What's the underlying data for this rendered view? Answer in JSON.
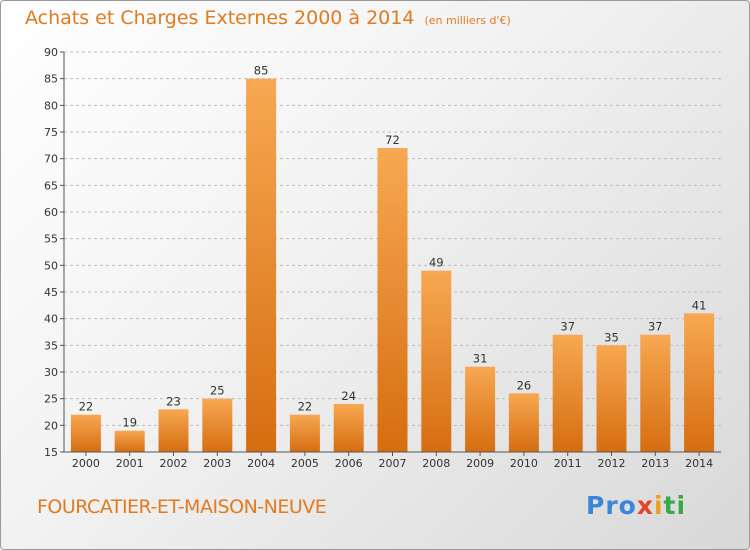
{
  "header": {
    "title": "Achats et Charges Externes 2000 à 2014",
    "subtitle": "(en milliers d'€)"
  },
  "footer": {
    "commune": "FOURCATIER-ET-MAISON-NEUVE",
    "logo": [
      "Pro",
      "x",
      "i",
      "ti"
    ]
  },
  "colors": {
    "bar_light": "#f7a852",
    "bar_dark": "#d66d10",
    "text_accent": "#e07b1f"
  },
  "chart_data": {
    "type": "bar",
    "title": "Achats et Charges Externes 2000 à 2014",
    "subtitle": "(en milliers d'€)",
    "categories": [
      "2000",
      "2001",
      "2002",
      "2003",
      "2004",
      "2005",
      "2006",
      "2007",
      "2008",
      "2009",
      "2010",
      "2011",
      "2012",
      "2013",
      "2014"
    ],
    "values": [
      22,
      19,
      23,
      25,
      85,
      22,
      24,
      72,
      49,
      31,
      26,
      37,
      35,
      37,
      41
    ],
    "ylim": [
      15,
      90
    ],
    "yticks": [
      15,
      20,
      25,
      30,
      35,
      40,
      45,
      50,
      55,
      60,
      65,
      70,
      75,
      80,
      85,
      90
    ],
    "grid": "dashed horizontal"
  }
}
